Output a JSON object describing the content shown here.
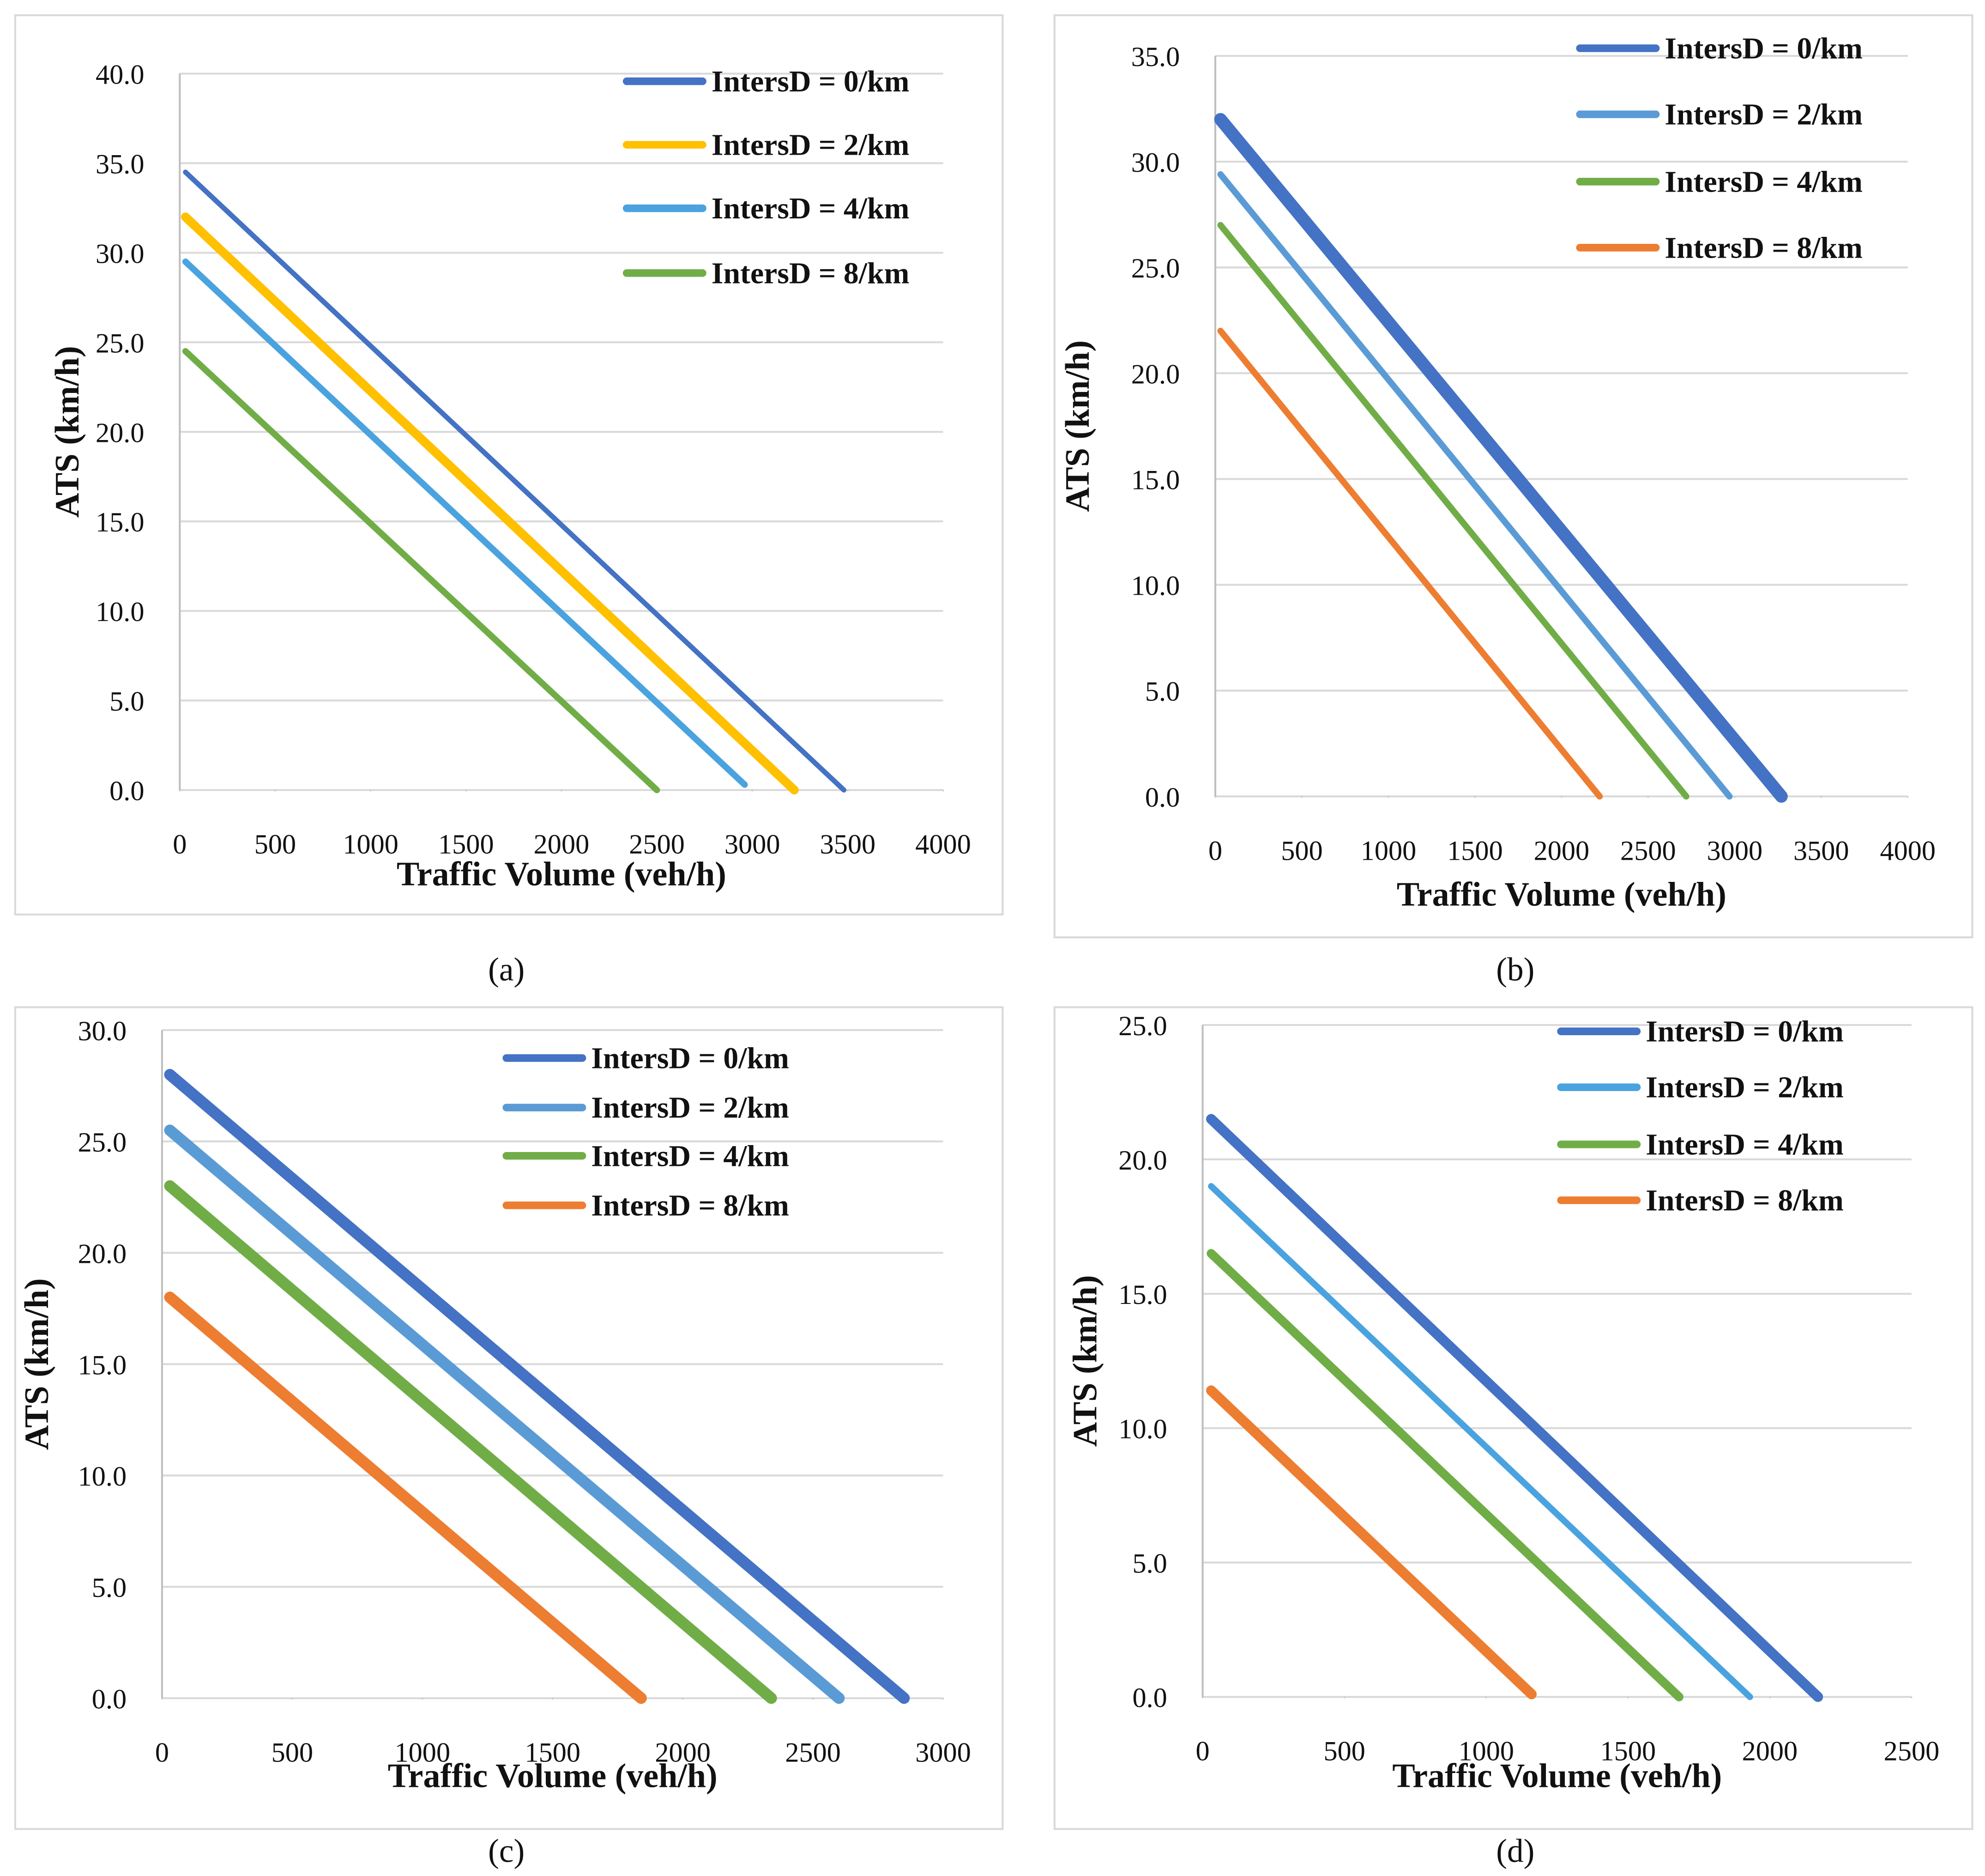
{
  "chart_data": [
    {
      "type": "line",
      "caption": "(a)",
      "xlabel": "Traffic Volume (veh/h)",
      "ylabel": "ATS (km/h)",
      "xlim": [
        0,
        4000
      ],
      "xticks": [
        0,
        500,
        1000,
        1500,
        2000,
        2500,
        3000,
        3500,
        4000
      ],
      "ylim": [
        0,
        40
      ],
      "yticks": [
        {
          "value": 0,
          "label": "0.0"
        },
        {
          "value": 5,
          "label": "5.0"
        },
        {
          "value": 10,
          "label": "10.0"
        },
        {
          "value": 15,
          "label": "15.0"
        },
        {
          "value": 20,
          "label": "20.0"
        },
        {
          "value": 25,
          "label": "25.0"
        },
        {
          "value": 30,
          "label": "30.0"
        },
        {
          "value": 35,
          "label": "35.0"
        },
        {
          "value": 40,
          "label": "40.0"
        }
      ],
      "grid": true,
      "series": [
        {
          "name": "IntersD = 0/km",
          "color": "#4472c4",
          "x": [
            30,
            3480
          ],
          "values": [
            34.5,
            0
          ]
        },
        {
          "name": "IntersD = 2/km",
          "color": "#ffc000",
          "x": [
            30,
            3220
          ],
          "values": [
            32,
            0
          ]
        },
        {
          "name": "IntersD = 4/km",
          "color": "#4aa3df",
          "x": [
            30,
            2960
          ],
          "values": [
            29.5,
            0.3
          ]
        },
        {
          "name": "IntersD = 8/km",
          "color": "#70ad47",
          "x": [
            30,
            2500
          ],
          "values": [
            24.5,
            0
          ]
        }
      ]
    },
    {
      "type": "line",
      "caption": "(b)",
      "xlabel": "Traffic Volume (veh/h)",
      "ylabel": "ATS (km/h)",
      "xlim": [
        0,
        4000
      ],
      "xticks": [
        0,
        500,
        1000,
        1500,
        2000,
        2500,
        3000,
        3500,
        4000
      ],
      "ylim": [
        0,
        35
      ],
      "yticks": [
        {
          "value": 0,
          "label": "0.0"
        },
        {
          "value": 5,
          "label": "5.0"
        },
        {
          "value": 10,
          "label": "10.0"
        },
        {
          "value": 15,
          "label": "15.0"
        },
        {
          "value": 20,
          "label": "20.0"
        },
        {
          "value": 25,
          "label": "25.0"
        },
        {
          "value": 30,
          "label": "30.0"
        },
        {
          "value": 35,
          "label": "35.0"
        }
      ],
      "grid": true,
      "series": [
        {
          "name": "IntersD = 0/km",
          "color": "#4472c4",
          "x": [
            30,
            3270
          ],
          "values": [
            32,
            0
          ]
        },
        {
          "name": "IntersD = 2/km",
          "color": "#5b9bd5",
          "x": [
            30,
            2970
          ],
          "values": [
            29.4,
            0
          ]
        },
        {
          "name": "IntersD = 4/km",
          "color": "#70ad47",
          "x": [
            30,
            2720
          ],
          "values": [
            27,
            0
          ]
        },
        {
          "name": "IntersD = 8/km",
          "color": "#ed7d31",
          "x": [
            30,
            2220
          ],
          "values": [
            22,
            0
          ]
        }
      ]
    },
    {
      "type": "line",
      "caption": "(c)",
      "xlabel": "Traffic Volume (veh/h)",
      "ylabel": "ATS (km/h)",
      "xlim": [
        0,
        3000
      ],
      "xticks": [
        0,
        500,
        1000,
        1500,
        2000,
        2500,
        3000
      ],
      "ylim": [
        0,
        30
      ],
      "yticks": [
        {
          "value": 0,
          "label": "0.0"
        },
        {
          "value": 5,
          "label": "5.0"
        },
        {
          "value": 10,
          "label": "10.0"
        },
        {
          "value": 15,
          "label": "15.0"
        },
        {
          "value": 20,
          "label": "20.0"
        },
        {
          "value": 25,
          "label": "25.0"
        },
        {
          "value": 30,
          "label": "30.0"
        }
      ],
      "grid": true,
      "series": [
        {
          "name": "IntersD = 0/km",
          "color": "#4472c4",
          "x": [
            30,
            2850
          ],
          "values": [
            28,
            0
          ]
        },
        {
          "name": "IntersD = 2/km",
          "color": "#5b9bd5",
          "x": [
            30,
            2600
          ],
          "values": [
            25.5,
            0
          ]
        },
        {
          "name": "IntersD = 4/km",
          "color": "#70ad47",
          "x": [
            30,
            2340
          ],
          "values": [
            23,
            0
          ]
        },
        {
          "name": "IntersD = 8/km",
          "color": "#ed7d31",
          "x": [
            30,
            1840
          ],
          "values": [
            18,
            0
          ]
        }
      ]
    },
    {
      "type": "line",
      "caption": "(d)",
      "xlabel": "Traffic  Volume (veh/h)",
      "ylabel": "ATS (km/h)",
      "xlim": [
        0,
        2500
      ],
      "xticks": [
        0,
        500,
        1000,
        1500,
        2000,
        2500
      ],
      "ylim": [
        0,
        25
      ],
      "yticks": [
        {
          "value": 0,
          "label": "0.0"
        },
        {
          "value": 5,
          "label": "5.0"
        },
        {
          "value": 10,
          "label": "10.0"
        },
        {
          "value": 15,
          "label": "15.0"
        },
        {
          "value": 20,
          "label": "20.0"
        },
        {
          "value": 25,
          "label": "25.0"
        }
      ],
      "grid": true,
      "series": [
        {
          "name": "IntersD = 0/km",
          "color": "#4472c4",
          "x": [
            30,
            2170
          ],
          "values": [
            21.5,
            0
          ]
        },
        {
          "name": "IntersD = 2/km",
          "color": "#4aa3df",
          "x": [
            30,
            1930
          ],
          "values": [
            19,
            0
          ]
        },
        {
          "name": "IntersD = 4/km",
          "color": "#70ad47",
          "x": [
            30,
            1680
          ],
          "values": [
            16.5,
            0
          ]
        },
        {
          "name": "IntersD = 8/km",
          "color": "#ed7d31",
          "x": [
            30,
            1160
          ],
          "values": [
            11.4,
            0.1
          ]
        }
      ]
    }
  ]
}
